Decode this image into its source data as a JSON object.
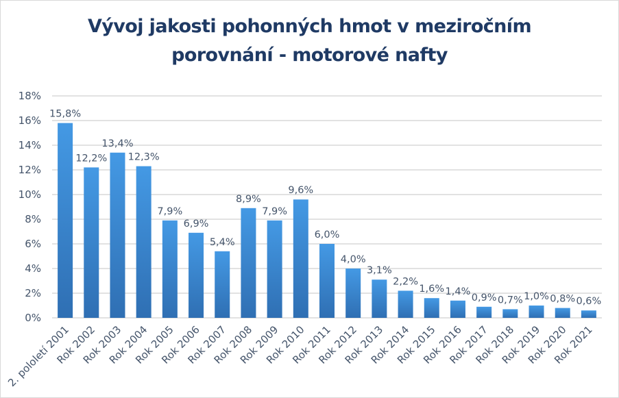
{
  "chart_data": {
    "type": "bar",
    "title_line1": "Vývoj jakosti pohonných hmot v meziročním",
    "title_line2": "porovnání - motorové nafty",
    "categories": [
      "2. pololetí 2001",
      "Rok 2002",
      "Rok 2003",
      "Rok 2004",
      "Rok 2005",
      "Rok 2006",
      "Rok 2007",
      "Rok 2008",
      "Rok 2009",
      "Rok 2010",
      "Rok 2011",
      "Rok 2012",
      "Rok 2013",
      "Rok 2014",
      "Rok 2015",
      "Rok 2016",
      "Rok 2017",
      "Rok 2018",
      "Rok 2019",
      "Rok 2020",
      "Rok 2021"
    ],
    "values": [
      15.8,
      12.2,
      13.4,
      12.3,
      7.9,
      6.9,
      5.4,
      8.9,
      7.9,
      9.6,
      6.0,
      4.0,
      3.1,
      2.2,
      1.6,
      1.4,
      0.9,
      0.7,
      1.0,
      0.8,
      0.6
    ],
    "data_labels": [
      "15,8%",
      "12,2%",
      "13,4%",
      "12,3%",
      "7,9%",
      "6,9%",
      "5,4%",
      "8,9%",
      "7,9%",
      "9,6%",
      "6,0%",
      "4,0%",
      "3,1%",
      "2,2%",
      "1,6%",
      "1,4%",
      "0,9%",
      "0,7%",
      "1,0%",
      "0,8%",
      "0,6%"
    ],
    "ylim": [
      0,
      18
    ],
    "yticks": [
      "0%",
      "2%",
      "4%",
      "6%",
      "8%",
      "10%",
      "12%",
      "14%",
      "16%",
      "18%"
    ],
    "xlabel": "",
    "ylabel": "",
    "grid": true,
    "colors": {
      "bar_top": "#4499e4",
      "bar_bottom": "#2f6fb3",
      "grid": "#d9d9d9",
      "title": "#1f3a64",
      "text": "#44546a"
    }
  }
}
